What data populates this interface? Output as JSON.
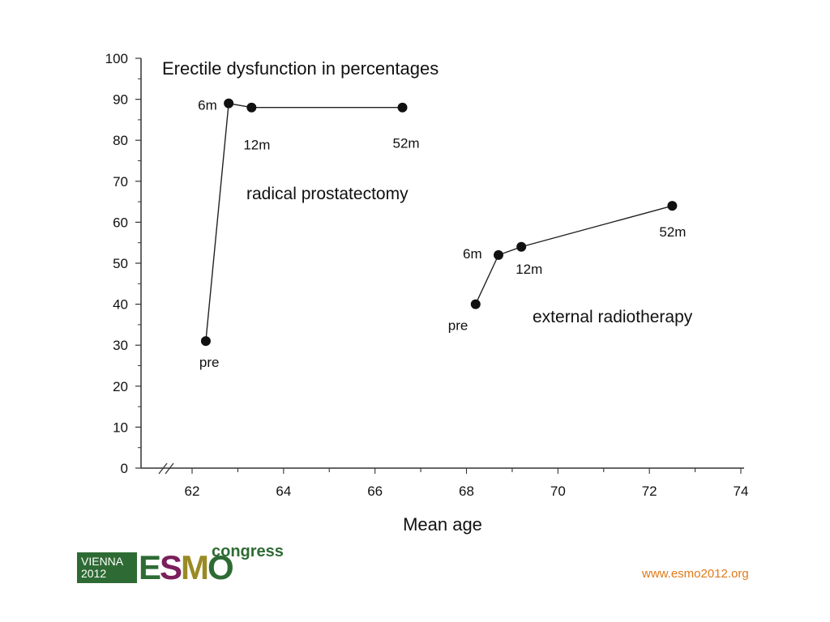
{
  "chart_data": {
    "type": "line",
    "title": "Erectile dysfunction in percentages",
    "xlabel": "Mean age",
    "ylabel": "",
    "xlim": [
      61,
      74
    ],
    "ylim": [
      0,
      100
    ],
    "x_ticks": [
      62,
      64,
      66,
      68,
      70,
      72,
      74
    ],
    "y_ticks": [
      0,
      10,
      20,
      30,
      40,
      50,
      60,
      70,
      80,
      90,
      100
    ],
    "axis_break": "x",
    "grid": false,
    "series": [
      {
        "name": "radical prostatectomy",
        "points": [
          {
            "x": 62.3,
            "y": 31,
            "label": "pre"
          },
          {
            "x": 62.8,
            "y": 89,
            "label": "6m"
          },
          {
            "x": 63.3,
            "y": 88,
            "label": "12m"
          },
          {
            "x": 66.6,
            "y": 88,
            "label": "52m"
          }
        ]
      },
      {
        "name": "external radiotherapy",
        "points": [
          {
            "x": 68.2,
            "y": 40,
            "label": "pre"
          },
          {
            "x": 68.7,
            "y": 52,
            "label": "6m"
          },
          {
            "x": 69.2,
            "y": 54,
            "label": "12m"
          },
          {
            "x": 72.5,
            "y": 64,
            "label": "52m"
          }
        ]
      }
    ]
  },
  "footer": {
    "logo_city": "VIENNA",
    "logo_year": "2012",
    "logo_letters": [
      "E",
      "S",
      "M",
      "O"
    ],
    "logo_word": "congress",
    "url": "www.esmo2012.org"
  }
}
